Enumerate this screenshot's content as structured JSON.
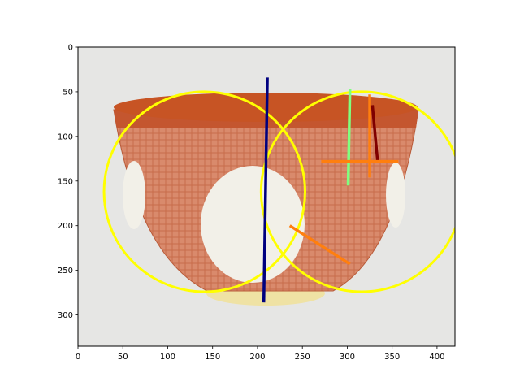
{
  "chart_data": {
    "type": "image-annotation",
    "title": "",
    "xlabel": "",
    "ylabel": "",
    "xlim": [
      0,
      420
    ],
    "ylim": [
      335,
      0
    ],
    "xticks": [
      0,
      50,
      100,
      150,
      200,
      250,
      300,
      350,
      400
    ],
    "yticks": [
      0,
      50,
      100,
      150,
      200,
      250,
      300
    ],
    "image": {
      "description": "porcelain bowl",
      "colors": {
        "background": "#e6e6e4",
        "bowl_body": "#d9876a",
        "bowl_band": "#c4562f",
        "rim_inside": "#c75424",
        "foot": "#efe2a4",
        "medallion": "#f2f0e8"
      }
    },
    "annotations": {
      "circles": [
        {
          "name": "left-circle",
          "cx": 141,
          "cy": 162,
          "r": 112,
          "color": "#ffff00"
        },
        {
          "name": "right-circle",
          "cx": 316,
          "cy": 162,
          "r": 112,
          "color": "#ffff00"
        }
      ],
      "lines": [
        {
          "name": "navy-line",
          "x": [
            211,
            207
          ],
          "y": [
            34,
            286
          ],
          "color": "#00007f",
          "width": 3.5
        },
        {
          "name": "light-green-line",
          "x": [
            303,
            301
          ],
          "y": [
            47,
            155
          ],
          "color": "#7fff7f",
          "width": 3.5
        },
        {
          "name": "dark-red-line",
          "x": [
            328,
            334
          ],
          "y": [
            65,
            130
          ],
          "color": "#7f0000",
          "width": 3.5
        },
        {
          "name": "orange-horizontal-line",
          "x": [
            271,
            357
          ],
          "y": [
            128,
            128
          ],
          "color": "#ff7f0e",
          "width": 3.5
        },
        {
          "name": "orange-vertical-line",
          "x": [
            325,
            325
          ],
          "y": [
            53,
            146
          ],
          "color": "#ff7f0e",
          "width": 3.5
        },
        {
          "name": "orange-diagonal-line",
          "x": [
            236,
            303
          ],
          "y": [
            200,
            243
          ],
          "color": "#ff7f0e",
          "width": 3.5
        }
      ]
    }
  }
}
